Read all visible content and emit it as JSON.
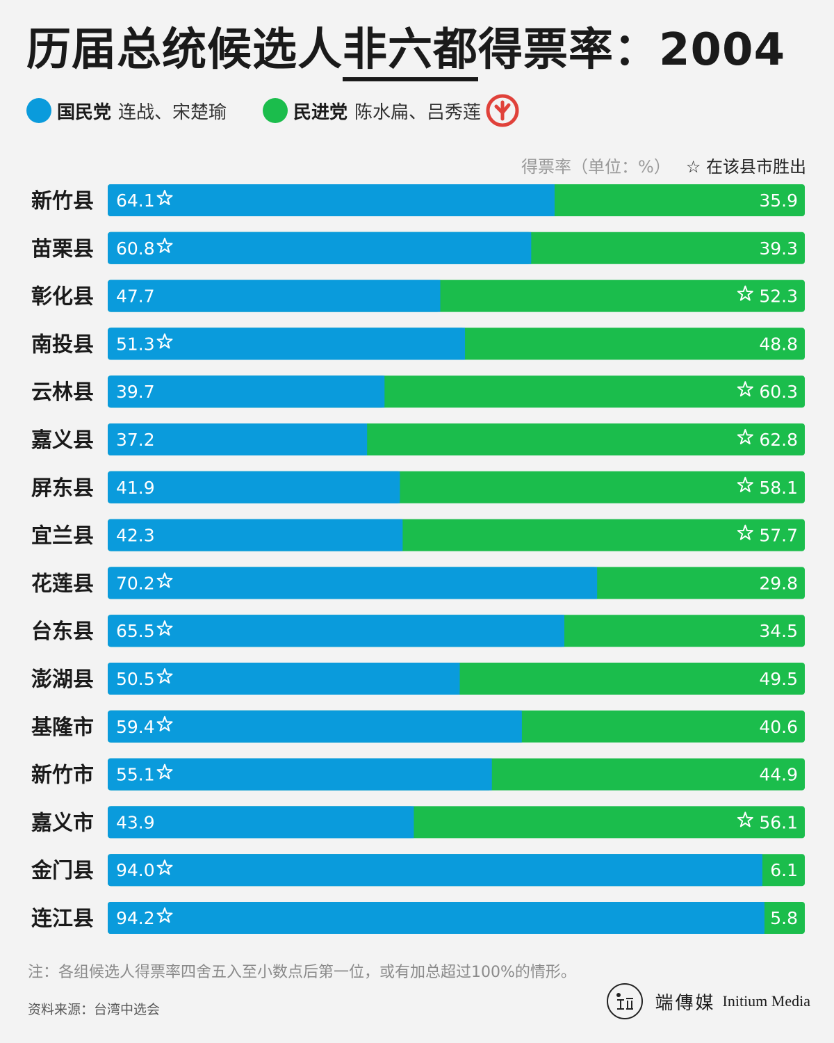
{
  "header": {
    "title_pre": "历届总统候选人",
    "title_underlined": "非六都",
    "title_post": "得票率：2004"
  },
  "legend": {
    "kmt_party": "国民党",
    "kmt_candidates": "连战、宋楚瑜",
    "dpp_party": "民进党",
    "dpp_candidates": "陈水扁、吕秀莲",
    "winner_icon": "vote-stamp-icon"
  },
  "unit_label": "得票率（单位：%）",
  "win_note": "☆ 在该县市胜出",
  "colors": {
    "kmt": "#0a9bdc",
    "dpp": "#1bbd4c",
    "stamp": "#e0413a"
  },
  "chart_data": {
    "type": "bar",
    "stacked": true,
    "orientation": "horizontal",
    "categories": [
      "新竹县",
      "苗栗县",
      "彰化县",
      "南投县",
      "云林县",
      "嘉义县",
      "屏东县",
      "宜兰县",
      "花莲县",
      "台东县",
      "澎湖县",
      "基隆市",
      "新竹市",
      "嘉义市",
      "金门县",
      "连江县"
    ],
    "series": [
      {
        "name": "国民党",
        "values": [
          64.1,
          60.8,
          47.7,
          51.3,
          39.7,
          37.2,
          41.9,
          42.3,
          70.2,
          65.5,
          50.5,
          59.4,
          55.1,
          43.9,
          94.0,
          94.2
        ]
      },
      {
        "name": "民进党",
        "values": [
          35.9,
          39.3,
          52.3,
          48.8,
          60.3,
          62.8,
          58.1,
          57.7,
          29.8,
          34.5,
          49.5,
          40.6,
          44.9,
          56.1,
          6.1,
          5.8
        ]
      }
    ],
    "winner": [
      "国民党",
      "国民党",
      "民进党",
      "国民党",
      "民进党",
      "民进党",
      "民进党",
      "民进党",
      "国民党",
      "国民党",
      "国民党",
      "国民党",
      "国民党",
      "民进党",
      "国民党",
      "国民党"
    ],
    "xlim": [
      0,
      100
    ]
  },
  "footer": {
    "note": "注：各组候选人得票率四舍五入至小数点后第一位，或有加总超过100%的情形。",
    "source": "资料来源：台湾中选会",
    "brand_zh": "端傳媒",
    "brand_en": "Initium Media"
  }
}
